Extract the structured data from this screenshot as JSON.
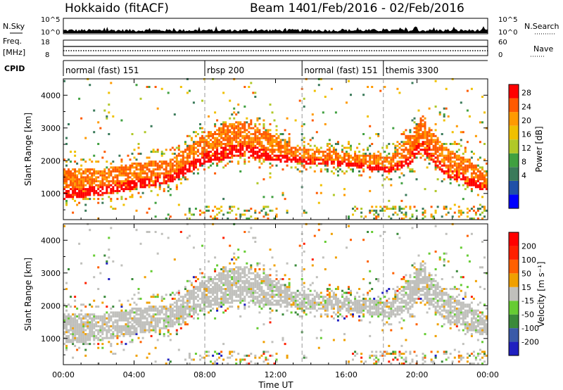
{
  "header": {
    "station": "Hokkaido (fitACF)",
    "beam": "Beam 14",
    "date_range": "01/Feb/2016 - 02/Feb/2016"
  },
  "top_panels": {
    "nsky_label": "N.Sky",
    "nsky_ticks": [
      "10^5",
      "10^0"
    ],
    "nsky_right_ticks": [
      "10^5",
      "10^0"
    ],
    "nsearch_label": "N.Search",
    "freq_label_1": "Freq.",
    "freq_label_2": "[MHz]",
    "freq_ticks": [
      "18",
      "8"
    ],
    "nave_ticks": [
      "60",
      "0"
    ],
    "nave_label": "Nave",
    "cpid_label": "CPID"
  },
  "cpid_segments": [
    {
      "label": "normal (fast) 151",
      "start_h": 0.0
    },
    {
      "label": "rbsp 200",
      "start_h": 8.0
    },
    {
      "label": "normal (fast) 151",
      "start_h": 13.5
    },
    {
      "label": "themis 3300",
      "start_h": 18.1
    }
  ],
  "axes": {
    "xlabel": "Time UT",
    "x_ticks": [
      "00:00",
      "04:00",
      "08:00",
      "12:00",
      "16:00",
      "20:00",
      "00:00"
    ],
    "ylabel": "Slant Range [km]",
    "y_ticks": [
      "1000",
      "2000",
      "3000",
      "4000"
    ]
  },
  "power_colorbar": {
    "label": "Power [dB]",
    "ticks": [
      "28",
      "24",
      "20",
      "16",
      "12",
      "8",
      "4"
    ],
    "colors": [
      "#0000ff",
      "#2050a8",
      "#3a7a5a",
      "#40a040",
      "#b0c828",
      "#f0c000",
      "#ff9a00",
      "#ff5a00",
      "#ff0000"
    ]
  },
  "velocity_colorbar": {
    "label": "Velocity [m s⁻¹]",
    "ticks": [
      "200",
      "100",
      "50",
      "15",
      "-15",
      "-50",
      "-100",
      "-200"
    ],
    "colors": [
      "#2020c0",
      "#3a5aa8",
      "#3a8a3a",
      "#66cc33",
      "#c0c0bc",
      "#f0a000",
      "#ff6000",
      "#ff2000",
      "#ff0000"
    ]
  },
  "chart_data": [
    {
      "type": "heatmap",
      "title": "Power",
      "xlabel": "Time UT",
      "ylabel": "Slant Range [km]",
      "xlim": [
        0,
        24
      ],
      "ylim": [
        200,
        4500
      ],
      "zlabel": "Power [dB]",
      "zlim": [
        0,
        32
      ],
      "main_band": [
        {
          "t": 0.0,
          "lo": 800,
          "hi": 1700
        },
        {
          "t": 2.0,
          "lo": 900,
          "hi": 1700
        },
        {
          "t": 4.0,
          "lo": 1100,
          "hi": 1900
        },
        {
          "t": 6.0,
          "lo": 1300,
          "hi": 2000
        },
        {
          "t": 7.0,
          "lo": 1600,
          "hi": 2400
        },
        {
          "t": 8.0,
          "lo": 1900,
          "hi": 2800
        },
        {
          "t": 9.0,
          "lo": 2000,
          "hi": 3100
        },
        {
          "t": 10.0,
          "lo": 2100,
          "hi": 3200
        },
        {
          "t": 11.0,
          "lo": 2000,
          "hi": 3000
        },
        {
          "t": 13.0,
          "lo": 1900,
          "hi": 2400
        },
        {
          "t": 16.0,
          "lo": 1800,
          "hi": 2200
        },
        {
          "t": 18.5,
          "lo": 1600,
          "hi": 2100
        },
        {
          "t": 19.5,
          "lo": 1800,
          "hi": 2700
        },
        {
          "t": 20.2,
          "lo": 2300,
          "hi": 3300
        },
        {
          "t": 21.5,
          "lo": 1500,
          "hi": 2400
        },
        {
          "t": 24.0,
          "lo": 1000,
          "hi": 1600
        }
      ]
    },
    {
      "type": "heatmap",
      "title": "Velocity",
      "xlabel": "Time UT",
      "ylabel": "Slant Range [km]",
      "xlim": [
        0,
        24
      ],
      "ylim": [
        200,
        4500
      ],
      "zlabel": "Velocity [m s⁻¹]",
      "zlim": [
        -200,
        200
      ]
    }
  ]
}
